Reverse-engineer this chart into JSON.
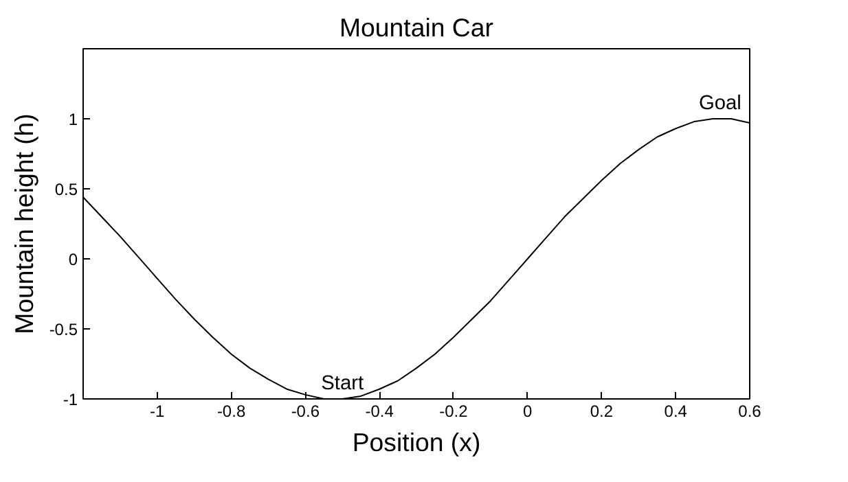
{
  "chart_data": {
    "type": "line",
    "title": "Mountain Car",
    "xlabel": "Position (x)",
    "ylabel": "Mountain height (h)",
    "x": [
      -1.2,
      -1.15,
      -1.1,
      -1.05,
      -1.0,
      -0.95,
      -0.9,
      -0.85,
      -0.8,
      -0.75,
      -0.7,
      -0.65,
      -0.6,
      -0.55,
      -0.5,
      -0.45,
      -0.4,
      -0.35,
      -0.3,
      -0.25,
      -0.2,
      -0.15,
      -0.1,
      -0.05,
      0,
      0.05,
      0.1,
      0.15,
      0.2,
      0.25,
      0.3,
      0.35,
      0.4,
      0.45,
      0.5,
      0.55,
      0.6
    ],
    "series": [
      {
        "color": "#000000",
        "values": [
          0.44,
          0.3,
          0.16,
          0.01,
          -0.14,
          -0.29,
          -0.43,
          -0.56,
          -0.68,
          -0.78,
          -0.86,
          -0.93,
          -0.97,
          -1.0,
          -1.0,
          -0.98,
          -0.93,
          -0.87,
          -0.78,
          -0.68,
          -0.56,
          -0.43,
          -0.3,
          -0.15,
          0,
          0.15,
          0.3,
          0.43,
          0.56,
          0.68,
          0.78,
          0.87,
          0.93,
          0.98,
          1.0,
          1.0,
          0.97
        ]
      }
    ],
    "xlim": [
      -1.2,
      0.6
    ],
    "ylim": [
      -1,
      1.5
    ],
    "xticks": [
      -1,
      -0.8,
      -0.6,
      -0.4,
      -0.2,
      0,
      0.2,
      0.4,
      0.6
    ],
    "yticks": [
      -1,
      -0.5,
      0,
      0.5,
      1
    ],
    "grid": false,
    "marker": "none",
    "line_style": "solid",
    "annotations": [
      {
        "text": "Start",
        "x": -0.5,
        "y": -1
      },
      {
        "text": "Goal",
        "x": 0.52,
        "y": 1
      }
    ]
  }
}
